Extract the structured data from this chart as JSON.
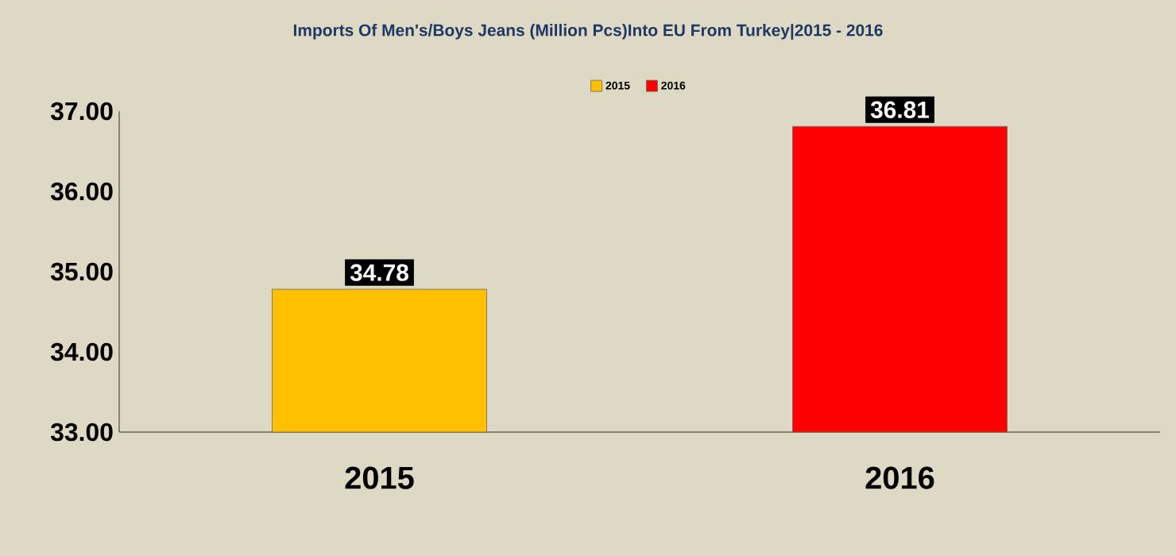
{
  "chart_data": {
    "type": "bar",
    "title": "Imports Of Men's/Boys Jeans (Million Pcs)Into EU From Turkey|2015 - 2016",
    "categories": [
      "2015",
      "2016"
    ],
    "series": [
      {
        "name": "2015",
        "color": "#ffc000",
        "values": [
          34.78,
          null
        ]
      },
      {
        "name": "2016",
        "color": "#ff0000",
        "values": [
          null,
          36.81
        ]
      }
    ],
    "ylim": [
      33,
      37
    ],
    "yticks": [
      {
        "value": 33,
        "label": "33.00"
      },
      {
        "value": 34,
        "label": "34.00"
      },
      {
        "value": 35,
        "label": "35.00"
      },
      {
        "value": 36,
        "label": "36.00"
      },
      {
        "value": 37,
        "label": "37.00"
      }
    ],
    "data_labels": true,
    "grid": false,
    "legend": "top"
  }
}
